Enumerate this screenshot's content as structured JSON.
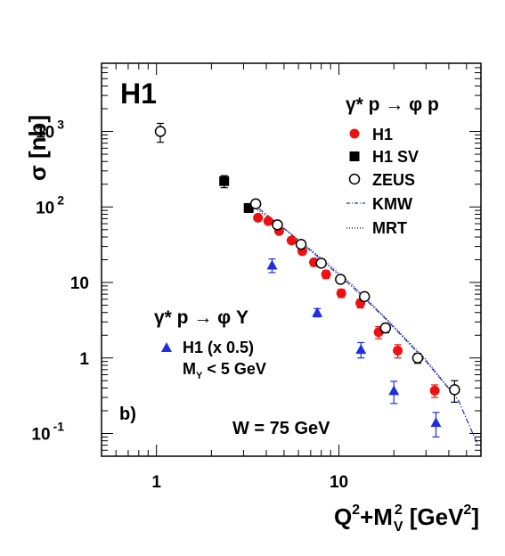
{
  "chart_data": {
    "type": "scatter",
    "experiment_label": "H1",
    "ylabel": "σ [nb]",
    "xlabel": {
      "q": "Q",
      "q_sup": "2",
      "plus_m": "+M",
      "m_sup": "2",
      "m_sub": "V",
      "unit_open": " [GeV",
      "unit_sup": "2",
      "unit_close": "]"
    },
    "xscale": "log",
    "yscale": "log",
    "xlim": [
      0.5,
      60
    ],
    "ylim": [
      0.05,
      8000
    ],
    "x_ticks": [
      {
        "value": 1,
        "label": "1"
      },
      {
        "value": 10,
        "label": "10"
      }
    ],
    "y_ticks": [
      {
        "value": 1000,
        "base": "10",
        "exp": "3"
      },
      {
        "value": 100,
        "base": "10",
        "exp": "2"
      },
      {
        "value": 10,
        "base": "10",
        "exp": ""
      },
      {
        "value": 1,
        "base": "1",
        "exp": ""
      },
      {
        "value": 0.1,
        "base": "10",
        "exp": "-1"
      }
    ],
    "legend_top": {
      "title": "γ* p → φ p",
      "entries": [
        "H1",
        "H1 SV",
        "ZEUS",
        "KMW",
        "MRT"
      ]
    },
    "legend_bottom": {
      "title": "γ* p → φ Y",
      "entries": [
        "H1 (x 0.5)"
      ],
      "note_main": "M",
      "note_sub": "Y",
      "note_rest": " < 5 GeV"
    },
    "panel_label": "b)",
    "annotation": "W = 75 GeV",
    "series": [
      {
        "name": "H1",
        "marker": "circle-filled",
        "color": "#ee1111",
        "points": [
          {
            "x": 3.6,
            "y": 72,
            "err": 6
          },
          {
            "x": 4.1,
            "y": 65,
            "err": 6
          },
          {
            "x": 4.7,
            "y": 48,
            "err": 4
          },
          {
            "x": 5.5,
            "y": 36,
            "err": 3
          },
          {
            "x": 6.3,
            "y": 26,
            "err": 2.5
          },
          {
            "x": 7.3,
            "y": 18.5,
            "err": 2
          },
          {
            "x": 8.5,
            "y": 12.8,
            "err": 1.5
          },
          {
            "x": 10.3,
            "y": 7.2,
            "err": 0.9
          },
          {
            "x": 13.1,
            "y": 5.3,
            "err": 0.7
          },
          {
            "x": 16.5,
            "y": 2.2,
            "err": 0.4
          },
          {
            "x": 21.0,
            "y": 1.25,
            "err": 0.25
          },
          {
            "x": 33.5,
            "y": 0.37,
            "err": 0.07
          }
        ]
      },
      {
        "name": "H1 SV",
        "marker": "square-filled",
        "color": "#000000",
        "points": [
          {
            "x": 2.35,
            "y": 220,
            "err": 40
          },
          {
            "x": 3.2,
            "y": 97,
            "err": 12
          }
        ]
      },
      {
        "name": "ZEUS",
        "marker": "circle-open",
        "color": "#000000",
        "points": [
          {
            "x": 1.05,
            "y": 1000,
            "err": 280
          },
          {
            "x": 3.5,
            "y": 110,
            "err": 9
          },
          {
            "x": 4.6,
            "y": 58,
            "err": 5
          },
          {
            "x": 6.2,
            "y": 32,
            "err": 3
          },
          {
            "x": 8.0,
            "y": 18,
            "err": 2
          },
          {
            "x": 10.2,
            "y": 11,
            "err": 1.2
          },
          {
            "x": 13.8,
            "y": 6.5,
            "err": 0.8
          },
          {
            "x": 18.0,
            "y": 2.5,
            "err": 0.35
          },
          {
            "x": 27.0,
            "y": 1.0,
            "err": 0.15
          },
          {
            "x": 43.0,
            "y": 0.38,
            "err": 0.12
          }
        ]
      },
      {
        "name": "H1 (x 0.5)",
        "marker": "triangle-filled",
        "color": "#1f2fe0",
        "points": [
          {
            "x": 4.3,
            "y": 17,
            "err": 3.5
          },
          {
            "x": 7.6,
            "y": 4.0,
            "err": 0.5
          },
          {
            "x": 13.2,
            "y": 1.3,
            "err": 0.3
          },
          {
            "x": 20.0,
            "y": 0.37,
            "err": 0.12
          },
          {
            "x": 34.0,
            "y": 0.14,
            "err": 0.05
          }
        ]
      }
    ],
    "curves": [
      {
        "name": "KMW",
        "style": "dash-dot",
        "color": "#1f2fe0",
        "points": [
          [
            3.3,
            115
          ],
          [
            5,
            52
          ],
          [
            8,
            20
          ],
          [
            12,
            8.5
          ],
          [
            18,
            3.3
          ],
          [
            30,
            0.9
          ],
          [
            45,
            0.28
          ],
          [
            58,
            0.068
          ]
        ]
      },
      {
        "name": "MRT",
        "style": "dotted",
        "color": "#000000",
        "points": [
          [
            3.2,
            110
          ],
          [
            5,
            52
          ],
          [
            8,
            21
          ],
          [
            12,
            9.0
          ],
          [
            18,
            3.4
          ],
          [
            30,
            0.95
          ],
          [
            43,
            0.32
          ]
        ]
      }
    ]
  }
}
